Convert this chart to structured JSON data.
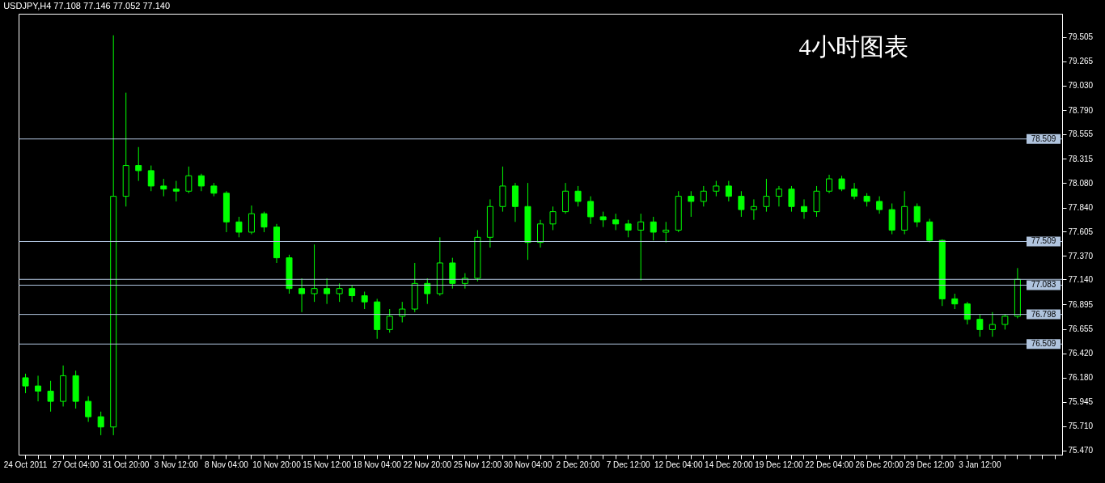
{
  "chart_data": {
    "type": "candlestick",
    "title": "USDJPY,H4  77.108 77.146 77.052 77.140",
    "annotations": [
      "4小时图表"
    ],
    "categories": [
      "24 Oct 2011",
      null,
      null,
      null,
      "27 Oct 04:00",
      null,
      null,
      null,
      "31 Oct 20:00",
      null,
      null,
      null,
      "3 Nov 12:00",
      null,
      null,
      null,
      "8 Nov 04:00",
      null,
      null,
      null,
      "10 Nov 20:00",
      null,
      null,
      null,
      "15 Nov 12:00",
      null,
      null,
      null,
      "18 Nov 04:00",
      null,
      null,
      null,
      "22 Nov 20:00",
      null,
      null,
      null,
      "25 Nov 12:00",
      null,
      null,
      null,
      "30 Nov 04:00",
      null,
      null,
      null,
      "2 Dec 20:00",
      null,
      null,
      null,
      "7 Dec 12:00",
      null,
      null,
      null,
      "12 Dec 04:00",
      null,
      null,
      null,
      "14 Dec 20:00",
      null,
      null,
      null,
      "19 Dec 12:00",
      null,
      null,
      null,
      "22 Dec 04:00",
      null,
      null,
      null,
      "26 Dec 20:00",
      null,
      null,
      null,
      "29 Dec 12:00",
      null,
      null,
      null,
      "3 Jan 12:00",
      null,
      null,
      null
    ],
    "ohlc": [
      [
        76.18,
        76.22,
        76.03,
        76.1
      ],
      [
        76.1,
        76.2,
        75.95,
        76.05
      ],
      [
        76.05,
        76.15,
        75.85,
        75.95
      ],
      [
        75.95,
        76.3,
        75.9,
        76.2
      ],
      [
        76.2,
        76.25,
        75.88,
        75.95
      ],
      [
        75.95,
        76.0,
        75.75,
        75.8
      ],
      [
        75.8,
        75.85,
        75.62,
        75.7
      ],
      [
        75.7,
        79.52,
        75.62,
        77.95
      ],
      [
        77.95,
        78.96,
        77.85,
        78.25
      ],
      [
        78.25,
        78.43,
        78.1,
        78.2
      ],
      [
        78.2,
        78.25,
        78.0,
        78.05
      ],
      [
        78.05,
        78.12,
        77.95,
        78.02
      ],
      [
        78.02,
        78.1,
        77.9,
        78.0
      ],
      [
        78.0,
        78.24,
        77.98,
        78.15
      ],
      [
        78.15,
        78.17,
        78.0,
        78.05
      ],
      [
        78.05,
        78.08,
        77.95,
        77.98
      ],
      [
        77.98,
        78.0,
        77.6,
        77.7
      ],
      [
        77.7,
        77.75,
        77.55,
        77.6
      ],
      [
        77.6,
        77.86,
        77.58,
        77.78
      ],
      [
        77.78,
        77.8,
        77.6,
        77.65
      ],
      [
        77.65,
        77.68,
        77.3,
        77.35
      ],
      [
        77.35,
        77.38,
        77.0,
        77.05
      ],
      [
        77.05,
        77.15,
        76.82,
        77.0
      ],
      [
        77.0,
        77.48,
        76.92,
        77.05
      ],
      [
        77.05,
        77.15,
        76.9,
        77.0
      ],
      [
        77.0,
        77.1,
        76.92,
        77.05
      ],
      [
        77.05,
        77.08,
        76.92,
        76.98
      ],
      [
        76.98,
        77.02,
        76.85,
        76.92
      ],
      [
        76.92,
        76.95,
        76.56,
        76.65
      ],
      [
        76.65,
        76.85,
        76.62,
        76.78
      ],
      [
        76.78,
        76.92,
        76.72,
        76.85
      ],
      [
        76.85,
        77.3,
        76.82,
        77.1
      ],
      [
        77.1,
        77.15,
        76.9,
        77.0
      ],
      [
        77.0,
        77.55,
        76.98,
        77.3
      ],
      [
        77.3,
        77.35,
        77.05,
        77.1
      ],
      [
        77.1,
        77.2,
        77.05,
        77.15
      ],
      [
        77.15,
        77.62,
        77.12,
        77.55
      ],
      [
        77.55,
        77.92,
        77.45,
        77.85
      ],
      [
        77.85,
        78.24,
        77.8,
        78.05
      ],
      [
        78.05,
        78.08,
        77.7,
        77.85
      ],
      [
        77.85,
        78.08,
        77.33,
        77.5
      ],
      [
        77.5,
        77.72,
        77.45,
        77.68
      ],
      [
        77.68,
        77.85,
        77.62,
        77.8
      ],
      [
        77.8,
        78.08,
        77.78,
        78.0
      ],
      [
        78.0,
        78.05,
        77.85,
        77.9
      ],
      [
        77.9,
        77.95,
        77.68,
        77.75
      ],
      [
        77.75,
        77.8,
        77.65,
        77.72
      ],
      [
        77.72,
        77.78,
        77.62,
        77.68
      ],
      [
        77.68,
        77.72,
        77.55,
        77.62
      ],
      [
        77.62,
        77.78,
        77.13,
        77.7
      ],
      [
        77.7,
        77.75,
        77.52,
        77.6
      ],
      [
        77.6,
        77.7,
        77.5,
        77.62
      ],
      [
        77.62,
        78.0,
        77.6,
        77.95
      ],
      [
        77.95,
        78.0,
        77.75,
        77.9
      ],
      [
        77.9,
        78.05,
        77.85,
        78.0
      ],
      [
        78.0,
        78.1,
        77.95,
        78.05
      ],
      [
        78.05,
        78.1,
        77.9,
        77.95
      ],
      [
        77.95,
        78.0,
        77.75,
        77.82
      ],
      [
        77.82,
        77.92,
        77.72,
        77.85
      ],
      [
        77.85,
        78.12,
        77.8,
        77.95
      ],
      [
        77.95,
        78.05,
        77.85,
        78.02
      ],
      [
        78.02,
        78.05,
        77.8,
        77.85
      ],
      [
        77.85,
        77.92,
        77.73,
        77.8
      ],
      [
        77.8,
        78.05,
        77.75,
        78.0
      ],
      [
        78.0,
        78.16,
        77.98,
        78.12
      ],
      [
        78.12,
        78.15,
        78.0,
        78.02
      ],
      [
        78.02,
        78.08,
        77.92,
        77.95
      ],
      [
        77.95,
        77.98,
        77.85,
        77.9
      ],
      [
        77.9,
        77.95,
        77.78,
        77.82
      ],
      [
        77.82,
        77.88,
        77.58,
        77.62
      ],
      [
        77.62,
        78.0,
        77.58,
        77.85
      ],
      [
        77.85,
        77.88,
        77.65,
        77.7
      ],
      [
        77.7,
        77.73,
        77.5,
        77.52
      ],
      [
        77.52,
        77.53,
        76.88,
        76.95
      ],
      [
        76.95,
        77.0,
        76.85,
        76.9
      ],
      [
        76.9,
        76.92,
        76.7,
        76.75
      ],
      [
        76.75,
        76.8,
        76.58,
        76.65
      ],
      [
        76.65,
        76.82,
        76.58,
        76.7
      ],
      [
        76.7,
        76.8,
        76.65,
        76.78
      ],
      [
        76.78,
        77.25,
        76.76,
        77.14
      ]
    ],
    "color": "#00ff00",
    "ylim": [
      75.43,
      79.73
    ],
    "yticks": [
      {
        "value": 75.47,
        "label": "75.470"
      },
      {
        "value": 75.71,
        "label": "75.710"
      },
      75.945,
      {
        "value": 76.18,
        "label": "76.180"
      },
      {
        "value": 76.42,
        "label": "76.420"
      },
      76.655,
      76.895,
      {
        "value": 77.14,
        "label": "77.140"
      },
      {
        "value": 77.37,
        "label": "77.370"
      },
      77.605,
      {
        "value": 77.84,
        "label": "77.840"
      },
      {
        "value": 78.08,
        "label": "78.080"
      },
      78.315,
      78.555,
      {
        "value": 78.79,
        "label": "78.790"
      },
      {
        "value": 79.03,
        "label": "79.030"
      },
      79.265,
      79.505
    ],
    "ref_lines": [
      {
        "axis": "y",
        "value": 78.509,
        "label": "78.509",
        "color": "#b0c4de"
      },
      {
        "axis": "y",
        "value": 77.509,
        "label": "77.509",
        "color": "#b0c4de"
      },
      {
        "axis": "y",
        "value": 77.14,
        "label": null,
        "color": "#b0c4de"
      },
      {
        "axis": "y",
        "value": 77.083,
        "label": "77.083",
        "color": "#b0c4de"
      },
      {
        "axis": "y",
        "value": 76.798,
        "label": "76.798",
        "color": "#b0c4de"
      },
      {
        "axis": "y",
        "value": 76.509,
        "label": "76.509",
        "color": "#b0c4de"
      }
    ]
  }
}
